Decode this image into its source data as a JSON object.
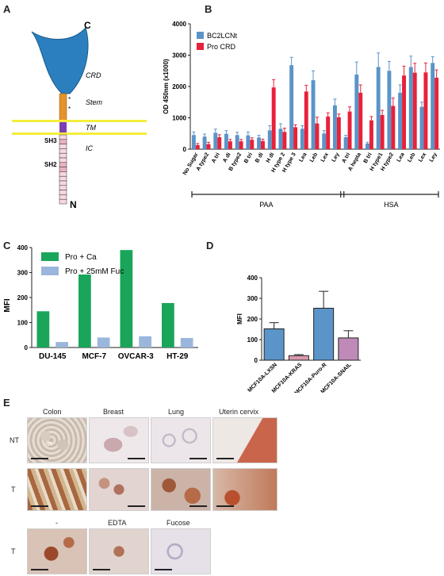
{
  "panels": {
    "a": "A",
    "b": "B",
    "c": "C",
    "d": "D",
    "e": "E"
  },
  "diagram": {
    "c_label": "C",
    "n_label": "N",
    "crd": "CRD",
    "stem": "Stem",
    "tm": "TM",
    "ic": "IC",
    "sh3": "SH3",
    "sh2": "SH2",
    "star": "*",
    "colors": {
      "crd": "#2b7fbf",
      "stem": "#e5932a",
      "tm": "#7b3fb3",
      "membrane": "#f4ee3c",
      "ic": "#f7d8df"
    }
  },
  "chart_data": [
    {
      "id": "B",
      "type": "bar",
      "ylabel": "OD 450nm (x1000)",
      "ylim": [
        0,
        4000
      ],
      "yticks": [
        "0",
        "1000",
        "2000",
        "3000",
        "4000"
      ],
      "categories": [
        "No Sugar",
        "A type2",
        "A tri",
        "A di",
        "B type2",
        "B tri",
        "B di",
        "H di",
        "H type 2",
        "H type 3",
        "Lea",
        "Leb",
        "Lex",
        "Ley",
        "A tri",
        "A hepta",
        "B tri",
        "H type1",
        "H type2",
        "Lea",
        "Leb",
        "Lex",
        "Ley"
      ],
      "series": [
        {
          "name": "BC2LCNt",
          "color": "#5b94c8",
          "values": [
            450,
            400,
            520,
            490,
            450,
            440,
            370,
            600,
            650,
            2680,
            650,
            2200,
            500,
            1400,
            380,
            2380,
            180,
            2620,
            2500,
            1800,
            2620,
            1350,
            2750
          ],
          "errors": [
            100,
            80,
            120,
            100,
            90,
            110,
            70,
            150,
            160,
            250,
            100,
            300,
            90,
            200,
            60,
            400,
            40,
            450,
            300,
            250,
            350,
            150,
            200
          ]
        },
        {
          "name": "Pro CRD",
          "color": "#e8213a",
          "values": [
            130,
            160,
            380,
            250,
            250,
            300,
            260,
            1970,
            550,
            700,
            1840,
            820,
            1040,
            1020,
            1200,
            1800,
            920,
            1090,
            1380,
            2350,
            2440,
            2450,
            2280
          ],
          "errors": [
            50,
            60,
            80,
            60,
            60,
            60,
            60,
            250,
            120,
            80,
            200,
            200,
            120,
            100,
            150,
            250,
            120,
            150,
            250,
            300,
            300,
            300,
            250
          ]
        }
      ],
      "group_labels": [
        "PAA",
        "HSA"
      ]
    },
    {
      "id": "C",
      "type": "bar",
      "ylabel": "MFI",
      "ylim": [
        0,
        400
      ],
      "yticks": [
        "0",
        "100",
        "200",
        "300",
        "400"
      ],
      "categories": [
        "DU-145",
        "MCF-7",
        "OVCAR-3",
        "HT-29"
      ],
      "series": [
        {
          "name": "Pro + Ca",
          "color": "#1aa55a",
          "values": [
            145,
            292,
            390,
            178
          ]
        },
        {
          "name": "Pro + 25mM Fuc",
          "color": "#9bb6dc",
          "values": [
            22,
            40,
            45,
            38
          ]
        }
      ]
    },
    {
      "id": "D",
      "type": "bar",
      "ylabel": "MFI",
      "ylim": [
        0,
        400
      ],
      "yticks": [
        "0",
        "100",
        "200",
        "300",
        "400"
      ],
      "categories": [
        "MCF10A-LXSN",
        "MCF10A-KRAS",
        "MCF10A-Puro-R",
        "MCF10A-SNAIL"
      ],
      "values": [
        152,
        22,
        252,
        108
      ],
      "errors": [
        30,
        5,
        82,
        35
      ],
      "colors": [
        "#5b94c8",
        "#d99aae",
        "#5b94c8",
        "#c08ab8"
      ]
    }
  ],
  "histology": {
    "columns": [
      "Colon",
      "Breast",
      "Lung",
      "Uterin cervix"
    ],
    "rows": [
      "NT",
      "T"
    ],
    "tile_text": "NT",
    "bottom_columns": [
      "-",
      "EDTA",
      "Fucose"
    ],
    "bottom_row": "T"
  }
}
